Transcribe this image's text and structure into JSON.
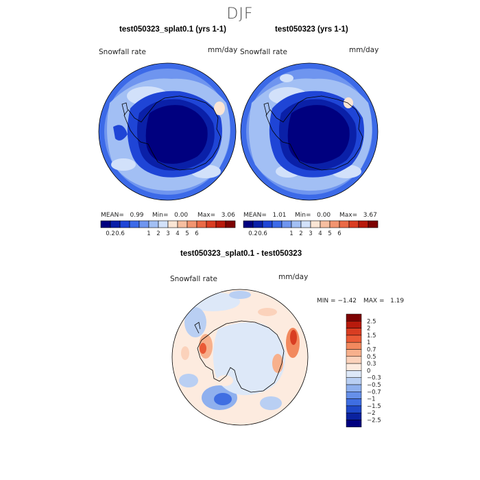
{
  "figure": {
    "season": "DJF",
    "panel_left": {
      "title": "test050323_splat0.1 (yrs 1-1)",
      "variable": "Snowfall rate",
      "units": "mm/day",
      "mean_label": "MEAN=",
      "mean": "0.99",
      "min_label": "Min=",
      "min": "0.00",
      "max_label": "Max=",
      "max": "3.06"
    },
    "panel_right": {
      "title": "test050323 (yrs 1-1)",
      "variable": "Snowfall rate",
      "units": "mm/day",
      "mean_label": "MEAN=",
      "mean": "1.01",
      "min_label": "Min=",
      "min": "0.00",
      "max_label": "Max=",
      "max": "3.67"
    },
    "panel_diff": {
      "title": "test050323_splat0.1 - test050323",
      "variable": "Snowfall rate",
      "units": "mm/day",
      "min_label": "MIN =",
      "min": "−1.42",
      "max_label": "MAX =",
      "max": "1.19"
    },
    "colorbar_main": {
      "ticks": [
        "0.2",
        "0.6",
        "1",
        "2",
        "3",
        "4",
        "5",
        "6"
      ],
      "colors": [
        "#00007f",
        "#0a20a8",
        "#1f45d6",
        "#3c6ae8",
        "#6f95ef",
        "#a2bff4",
        "#d2e1fa",
        "#fbe5d4",
        "#f7bea0",
        "#f29470",
        "#ea6a46",
        "#d93d22",
        "#b81a0c",
        "#7d0303"
      ]
    },
    "colorbar_diff": {
      "ticks": [
        "2.5",
        "2",
        "1.5",
        "1",
        "0.7",
        "0.5",
        "0.3",
        "0",
        "−0.3",
        "−0.5",
        "−0.7",
        "−1",
        "−1.5",
        "−2",
        "−2.5"
      ],
      "colors": [
        "#7d0303",
        "#b81a0c",
        "#d93d22",
        "#ea5a36",
        "#f2895e",
        "#f7b08c",
        "#fbd2bb",
        "#fdebdf",
        "#dde8f8",
        "#b9cff3",
        "#8fb0ee",
        "#6690e9",
        "#3f6ee2",
        "#1f48c8",
        "#0a22a0",
        "#00007f"
      ]
    }
  }
}
